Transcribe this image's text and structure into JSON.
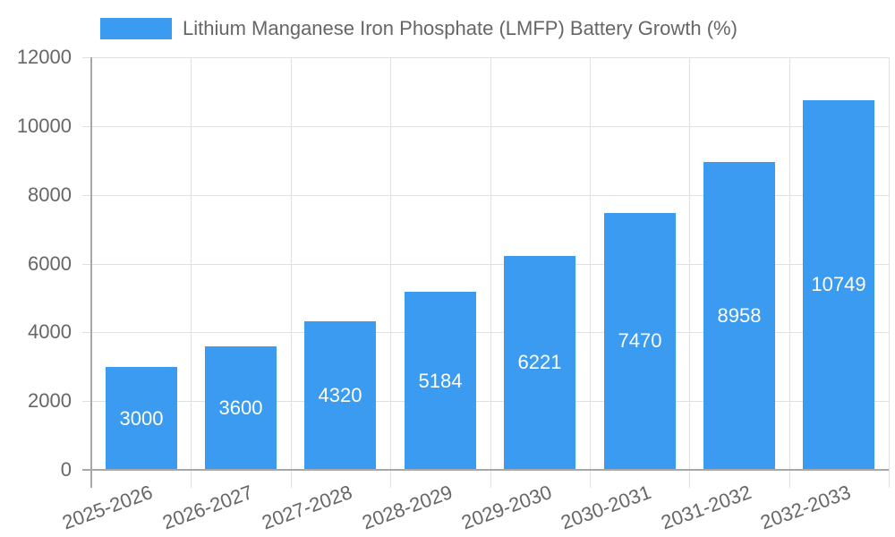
{
  "chart_data": {
    "type": "bar",
    "title": "",
    "legend": [
      "Lithium Manganese Iron Phosphate (LMFP) Battery Growth (%)"
    ],
    "legend_position": "top",
    "categories": [
      "2025-2026",
      "2026-2027",
      "2027-2028",
      "2028-2029",
      "2029-2030",
      "2030-2031",
      "2031-2032",
      "2032-2033"
    ],
    "series": [
      {
        "name": "Lithium Manganese Iron Phosphate (LMFP) Battery Growth (%)",
        "values": [
          3000,
          3600,
          4320,
          5184,
          6221,
          7470,
          8958,
          10749
        ],
        "color": "#3a9bf0"
      }
    ],
    "xlabel": "",
    "ylabel": "",
    "ylim": [
      0,
      12000
    ],
    "yticks": [
      0,
      2000,
      4000,
      6000,
      8000,
      10000,
      12000
    ],
    "grid": true,
    "data_labels": true
  },
  "legend": {
    "label": "Lithium Manganese Iron Phosphate (LMFP) Battery Growth (%)",
    "color": "#3a9bf0"
  }
}
